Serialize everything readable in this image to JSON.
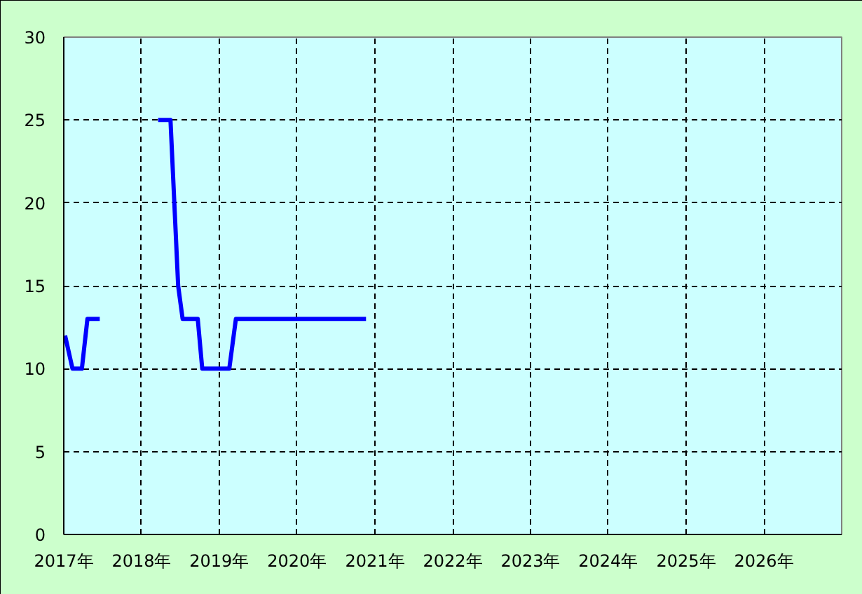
{
  "chart_data": {
    "type": "line",
    "x": [
      "2017-01-07",
      "2017-02-11",
      "2017-03-27",
      "2017-04-22",
      "2017-06-19",
      "2017-11-01",
      "2018-03-20",
      "2018-05-17",
      "2018-06-22",
      "2018-07-13",
      "2018-09-22",
      "2018-10-13",
      "2019-02-17",
      "2019-03-20",
      "2020-11-20"
    ],
    "series": [
      {
        "color": "#0000ff",
        "values": [
          12,
          10,
          10,
          13,
          13,
          null,
          25,
          25,
          15,
          13,
          13,
          10,
          10,
          13,
          13
        ]
      }
    ],
    "xlim": [
      "2017",
      "2027"
    ],
    "xticks": [
      {
        "value": "2017",
        "label": "2017年"
      },
      {
        "value": "2018",
        "label": "2018年"
      },
      {
        "value": "2019",
        "label": "2019年"
      },
      {
        "value": "2020",
        "label": "2020年"
      },
      {
        "value": "2021",
        "label": "2021年"
      },
      {
        "value": "2022",
        "label": "2022年"
      },
      {
        "value": "2023",
        "label": "2023年"
      },
      {
        "value": "2024",
        "label": "2024年"
      },
      {
        "value": "2025",
        "label": "2025年"
      },
      {
        "value": "2026",
        "label": "2026年"
      }
    ],
    "ylim": [
      0,
      30
    ],
    "yticks": [
      0,
      5,
      10,
      15,
      20,
      25,
      30
    ],
    "grid": true,
    "marker": "none",
    "line_style": "solid"
  }
}
